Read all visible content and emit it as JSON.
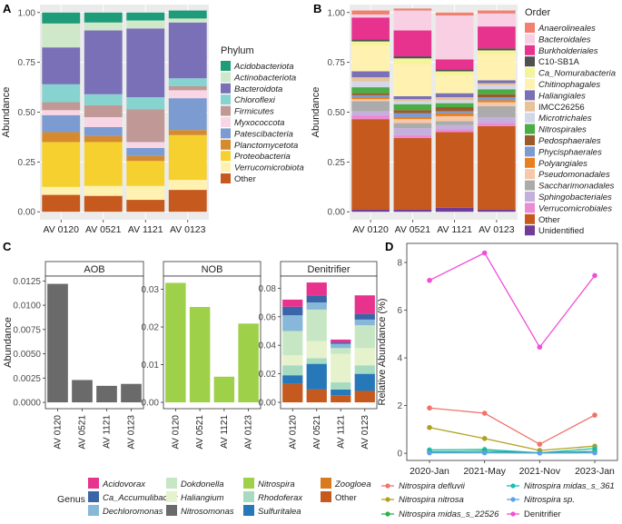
{
  "chart_data": [
    {
      "panel": "A",
      "type": "stacked-bar",
      "categories": [
        "AV 0120",
        "AV 0521",
        "AV 1121",
        "AV 0123"
      ],
      "ylabel": "Abundance",
      "ylim": [
        0,
        1
      ],
      "yticks": [
        "0.00",
        "0.25",
        "0.50",
        "0.75",
        "1.00"
      ],
      "legend_title": "Phylum",
      "series": [
        {
          "name": "Other",
          "color": "#c65a1e",
          "values": [
            0.085,
            0.08,
            0.06,
            0.11
          ]
        },
        {
          "name": "Verrucomicrobiota",
          "color": "#fff2b0",
          "values": [
            0.04,
            0.05,
            0.07,
            0.05
          ]
        },
        {
          "name": "Proteobacteria",
          "color": "#f6d02f",
          "values": [
            0.225,
            0.22,
            0.125,
            0.225
          ]
        },
        {
          "name": "Planctomycetota",
          "color": "#d68a2e",
          "values": [
            0.05,
            0.03,
            0.025,
            0.025
          ]
        },
        {
          "name": "Patescibacteria",
          "color": "#7b9bd1",
          "values": [
            0.085,
            0.045,
            0.04,
            0.16
          ]
        },
        {
          "name": "Myxococcota",
          "color": "#f9d6e6",
          "values": [
            0.025,
            0.05,
            0.03,
            0.04
          ]
        },
        {
          "name": "Firmicutes",
          "color": "#c09896",
          "values": [
            0.04,
            0.06,
            0.165,
            0.02
          ]
        },
        {
          "name": "Chloroflexi",
          "color": "#86d3cf",
          "values": [
            0.09,
            0.055,
            0.06,
            0.04
          ]
        },
        {
          "name": "Bacteroidota",
          "color": "#7a70b8",
          "values": [
            0.185,
            0.32,
            0.345,
            0.28
          ]
        },
        {
          "name": "Actinobacteriota",
          "color": "#cfe8c9",
          "values": [
            0.12,
            0.04,
            0.04,
            0.02
          ]
        },
        {
          "name": "Acidobacteriota",
          "color": "#1e9b78",
          "values": [
            0.055,
            0.05,
            0.04,
            0.04
          ]
        }
      ]
    },
    {
      "panel": "B",
      "type": "stacked-bar",
      "categories": [
        "AV 0120",
        "AV 0521",
        "AV 1121",
        "AV 0123"
      ],
      "ylabel": "Abundance",
      "ylim": [
        0,
        1
      ],
      "yticks": [
        "0.00",
        "0.25",
        "0.50",
        "0.75",
        "1.00"
      ],
      "legend_title": "Order",
      "series": [
        {
          "name": "Unidentified",
          "color": "#6f3c98",
          "values": [
            0.01,
            0.01,
            0.02,
            0.01
          ]
        },
        {
          "name": "Other",
          "color": "#c65a1e",
          "values": [
            0.455,
            0.36,
            0.38,
            0.42
          ]
        },
        {
          "name": "Verrucomicrobiales",
          "color": "#ec8bd5",
          "values": [
            0.02,
            0.015,
            0.015,
            0.015
          ]
        },
        {
          "name": "Sphingobacteriales",
          "color": "#c5afdc",
          "values": [
            0.02,
            0.035,
            0.02,
            0.03
          ]
        },
        {
          "name": "Saccharimonadales",
          "color": "#ababab",
          "values": [
            0.05,
            0.025,
            0.02,
            0.055
          ]
        },
        {
          "name": "Pseudomonadales",
          "color": "#f6c8a8",
          "values": [
            0.01,
            0.02,
            0.025,
            0.02
          ]
        },
        {
          "name": "Polyangiales",
          "color": "#e8801f",
          "values": [
            0.01,
            0.01,
            0.015,
            0.01
          ]
        },
        {
          "name": "Phycisphaerales",
          "color": "#7b9bd1",
          "values": [
            0.01,
            0.02,
            0.01,
            0.015
          ]
        },
        {
          "name": "Pedosphaerales",
          "color": "#9a5a2a",
          "values": [
            0.01,
            0.015,
            0.02,
            0.015
          ]
        },
        {
          "name": "Nitrospirales",
          "color": "#4aad45",
          "values": [
            0.03,
            0.03,
            0.02,
            0.025
          ]
        },
        {
          "name": "Microtrichales",
          "color": "#d4d7e8",
          "values": [
            0.03,
            0.015,
            0.015,
            0.02
          ]
        },
        {
          "name": "IMCC26256",
          "color": "#e8c298",
          "values": [
            0.02,
            0.01,
            0.015,
            0.01
          ]
        },
        {
          "name": "Haliangiales",
          "color": "#7a70b8",
          "values": [
            0.03,
            0.015,
            0.02,
            0.015
          ]
        },
        {
          "name": "Chitinophagales",
          "color": "#fff2b0",
          "values": [
            0.13,
            0.16,
            0.09,
            0.13
          ]
        },
        {
          "name": "Ca_Nomurabacteria",
          "color": "#f4f49a",
          "values": [
            0.02,
            0.03,
            0.02,
            0.02
          ]
        },
        {
          "name": "C10-SB1A",
          "color": "#505050",
          "values": [
            0.01,
            0.01,
            0.01,
            0.01
          ]
        },
        {
          "name": "Burkholderiales",
          "color": "#e7328e",
          "values": [
            0.11,
            0.13,
            0.05,
            0.11
          ]
        },
        {
          "name": "Bacteroidales",
          "color": "#f9d0e3",
          "values": [
            0.015,
            0.1,
            0.22,
            0.065
          ]
        },
        {
          "name": "Anaerolineales",
          "color": "#f08070",
          "values": [
            0.02,
            0.01,
            0.015,
            0.015
          ]
        }
      ]
    },
    {
      "panel": "C",
      "type": "faceted-bar",
      "categories": [
        "AV 0120",
        "AV 0521",
        "AV 1121",
        "AV 0123"
      ],
      "ylabel": "Abundance",
      "legend_title": "Genus",
      "facets": [
        {
          "name": "AOB",
          "ylim": [
            0,
            0.013
          ],
          "yticks": [
            0,
            0.0025,
            0.005,
            0.0075,
            0.01,
            0.0125
          ],
          "ytick_labels": [
            "0.0000",
            "0.0025",
            "0.0050",
            "0.0075",
            "0.0100",
            "0.0125"
          ],
          "series": [
            {
              "name": "Nitrosomonas",
              "color": "#6a6a6a",
              "values": [
                0.0122,
                0.0023,
                0.0017,
                0.0019
              ]
            }
          ]
        },
        {
          "name": "NOB",
          "ylim": [
            0,
            0.0335
          ],
          "yticks": [
            0,
            0.01,
            0.02,
            0.03
          ],
          "ytick_labels": [
            "0.00",
            "0.01",
            "0.02",
            "0.03"
          ],
          "series": [
            {
              "name": "Nitrospira",
              "color": "#9fd049",
              "values": [
                0.0317,
                0.0253,
                0.0068,
                0.0209
              ]
            }
          ]
        },
        {
          "name": "Denitrifier",
          "ylim": [
            0,
            0.0885
          ],
          "yticks": [
            0,
            0.02,
            0.04,
            0.06,
            0.08
          ],
          "ytick_labels": [
            "0.00",
            "0.02",
            "0.04",
            "0.06",
            "0.08"
          ],
          "series": [
            {
              "name": "Other",
              "color": "#c65a1e",
              "values": [
                0.013,
                0.009,
                0.005,
                0.008
              ]
            },
            {
              "name": "Sulfuritalea",
              "color": "#2778b8",
              "values": [
                0.006,
                0.018,
                0.004,
                0.012
              ]
            },
            {
              "name": "Rhodoferax",
              "color": "#a6dbc1",
              "values": [
                0.007,
                0.004,
                0.005,
                0.006
              ]
            },
            {
              "name": "Haliangium",
              "color": "#e5f2cc",
              "values": [
                0.007,
                0.012,
                0.02,
                0.012
              ]
            },
            {
              "name": "Dokdonella",
              "color": "#c7e7c4",
              "values": [
                0.017,
                0.022,
                0.004,
                0.016
              ]
            },
            {
              "name": "Dechloromonas",
              "color": "#87b8d9",
              "values": [
                0.011,
                0.005,
                0.003,
                0.004
              ]
            },
            {
              "name": "Ca_Accumulibacter",
              "color": "#3a66a8",
              "values": [
                0.006,
                0.005,
                0.001,
                0.004
              ]
            },
            {
              "name": "Acidovorax",
              "color": "#e7328e",
              "values": [
                0.005,
                0.009,
                0.002,
                0.013
              ]
            }
          ]
        }
      ],
      "legend": [
        "Acidovorax",
        "Ca_Accumulibacter",
        "Dechloromonas",
        "Dokdonella",
        "Haliangium",
        "Nitrosomonas",
        "Nitrospira",
        "Rhodoferax",
        "Sulfuritalea",
        "Zoogloea",
        "Other"
      ],
      "legend_colors": {
        "Acidovorax": "#e7328e",
        "Ca_Accumulibacter": "#3a66a8",
        "Dechloromonas": "#87b8d9",
        "Dokdonella": "#c7e7c4",
        "Haliangium": "#e5f2cc",
        "Nitrosomonas": "#6a6a6a",
        "Nitrospira": "#9fd049",
        "Rhodoferax": "#a6dbc1",
        "Sulfuritalea": "#2778b8",
        "Zoogloea": "#d97a1e",
        "Other": "#c65a1e"
      }
    },
    {
      "panel": "D",
      "type": "line",
      "x": [
        "2020-Jan",
        "2021-May",
        "2021-Nov",
        "2023-Jan"
      ],
      "ylabel": "Relative Abundance (%)",
      "ylim": [
        -0.3,
        8.8
      ],
      "yticks": [
        0,
        2,
        4,
        6,
        8
      ],
      "series": [
        {
          "name": "Denitrifier",
          "color": "#f24fd8",
          "values": [
            7.25,
            8.4,
            4.45,
            7.45
          ]
        },
        {
          "name": "Nitrospira defluvii",
          "color": "#f0736a",
          "values": [
            1.9,
            1.68,
            0.38,
            1.6
          ]
        },
        {
          "name": "Nitrospira nitrosa",
          "color": "#b3a01e",
          "values": [
            1.08,
            0.62,
            0.12,
            0.3
          ]
        },
        {
          "name": "Nitrospira midas_s_361",
          "color": "#19bfb3",
          "values": [
            0.14,
            0.16,
            0.02,
            0.2
          ]
        },
        {
          "name": "Nitrospira midas_s_22526",
          "color": "#27b34a",
          "values": [
            0.06,
            0.08,
            0.02,
            0.08
          ]
        },
        {
          "name": "Nitrospira sp.",
          "color": "#5aa2f0",
          "values": [
            0.02,
            0.02,
            0.01,
            0.02
          ]
        }
      ],
      "legend": [
        "Nitrospira defluvii",
        "Nitrospira midas_s_361",
        "Nitrospira nitrosa",
        "Nitrospira sp.",
        "Nitrospira midas_s_22526",
        "Denitrifier"
      ]
    }
  ],
  "panel_labels": [
    "A",
    "B",
    "C",
    "D"
  ]
}
